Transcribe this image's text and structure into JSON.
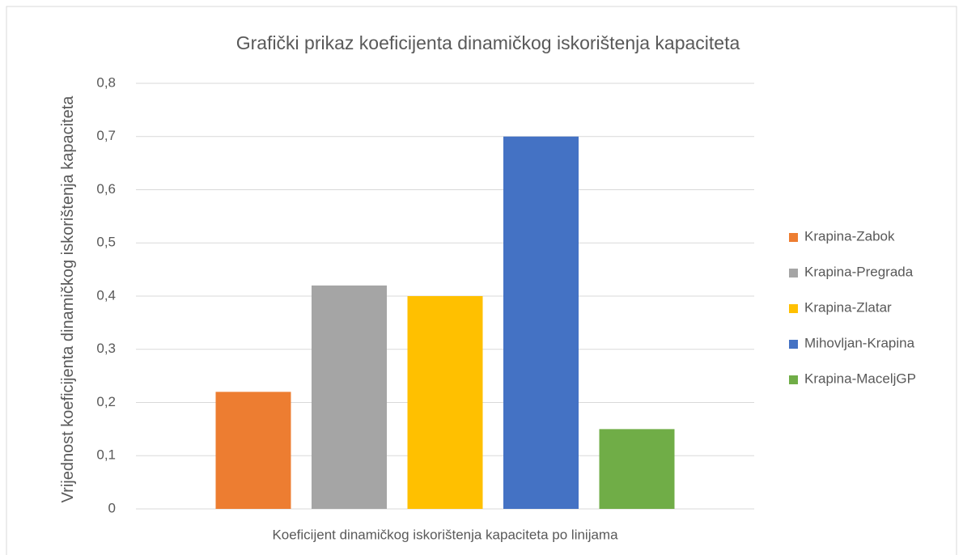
{
  "chart_data": {
    "type": "bar",
    "title": "Grafički prikaz koeficijenta dinamičkog iskorištenja kapaciteta",
    "ylabel": "Vrijednost koeficijenta dinamičkog iskorištenja kapaciteta",
    "categories": [
      "Koeficijent dinamičkog iskorištenja kapaciteta po linijama"
    ],
    "series": [
      {
        "name": "Krapina-Zabok",
        "color": "#ed7d31",
        "values": [
          0.22
        ]
      },
      {
        "name": "Krapina-Pregrada",
        "color": "#a5a5a5",
        "values": [
          0.42
        ]
      },
      {
        "name": "Krapina-Zlatar",
        "color": "#ffc000",
        "values": [
          0.4
        ]
      },
      {
        "name": "Mihovljan-Krapina",
        "color": "#4472c4",
        "values": [
          0.7
        ]
      },
      {
        "name": "Krapina-MaceljGP",
        "color": "#70ad47",
        "values": [
          0.15
        ]
      }
    ],
    "ylim": [
      0,
      0.8
    ],
    "yticks": [
      0,
      {
        "value": 0.1,
        "label": "0,1"
      },
      {
        "value": 0.2,
        "label": "0,2"
      },
      {
        "value": 0.3,
        "label": "0,3"
      },
      {
        "value": 0.4,
        "label": "0,4"
      },
      {
        "value": 0.5,
        "label": "0,5"
      },
      {
        "value": 0.6,
        "label": "0,6"
      },
      {
        "value": 0.7,
        "label": "0,7"
      },
      {
        "value": 0.8,
        "label": "0,8"
      }
    ],
    "grid": true,
    "legend": "right"
  }
}
